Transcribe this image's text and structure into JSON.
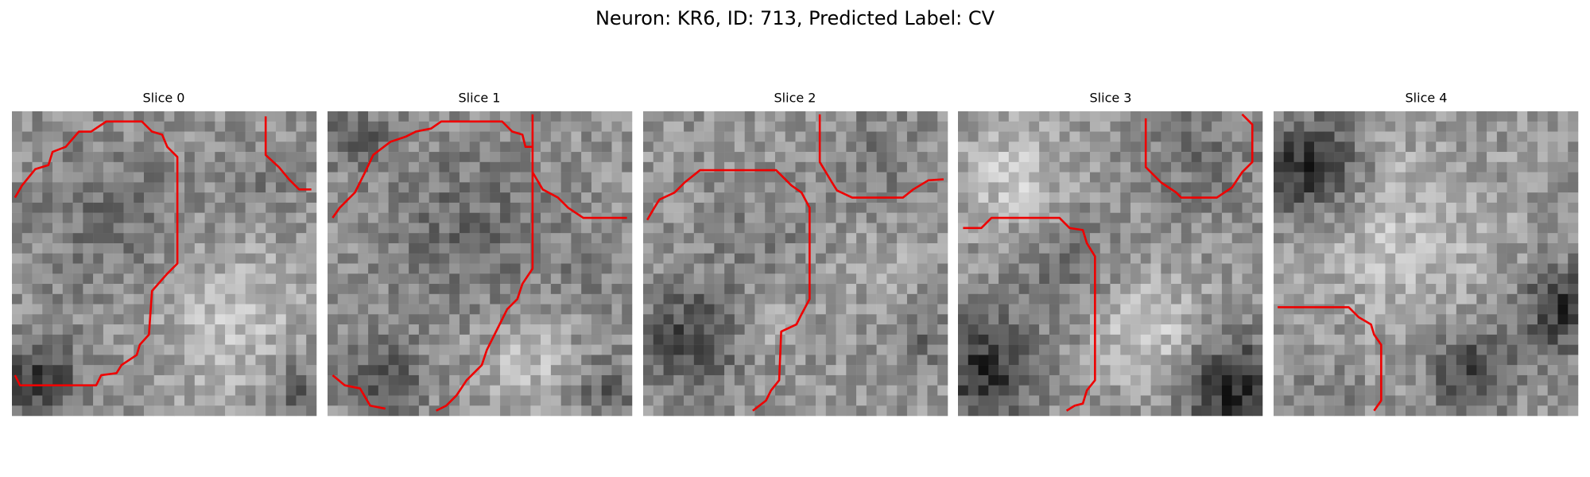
{
  "title": "Neuron: KR6, ID: 713, Predicted Label: CV",
  "panels": [
    {
      "title": "Slice 0"
    },
    {
      "title": "Slice 1"
    },
    {
      "title": "Slice 2"
    },
    {
      "title": "Slice 3"
    },
    {
      "title": "Slice 4"
    }
  ]
}
